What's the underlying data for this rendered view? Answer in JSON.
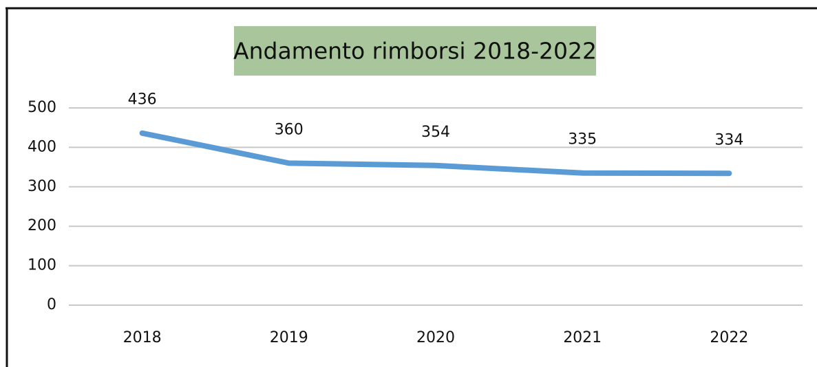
{
  "chart_data": {
    "type": "line",
    "title": "Andamento rimborsi 2018-2022",
    "categories": [
      "2018",
      "2019",
      "2020",
      "2021",
      "2022"
    ],
    "values": [
      436,
      360,
      354,
      335,
      334
    ],
    "color": "#5b9bd5",
    "ylim": [
      0,
      500
    ],
    "yticks": [
      0,
      100,
      200,
      300,
      400,
      500
    ],
    "grid": true
  }
}
